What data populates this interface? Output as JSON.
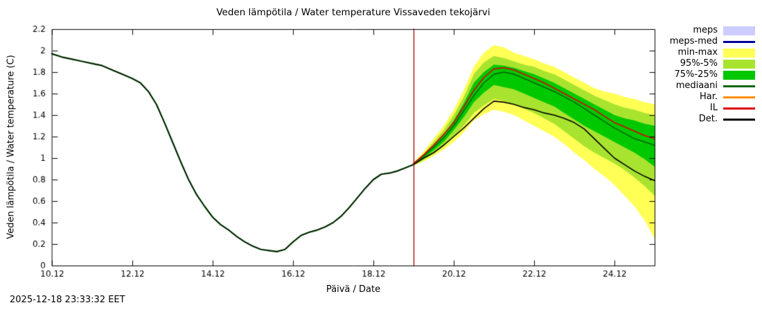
{
  "header": {
    "title": "Veden lämpötila / Water temperature Vissaveden tekojärvi"
  },
  "footer": {
    "timestamp": "2025-12-18 23:33:32 EET"
  },
  "chart_data": {
    "type": "line",
    "title": "Veden lämpötila / Water temperature Vissaveden tekojärvi",
    "xlabel": "Päivä / Date",
    "ylabel": "Veden lämpötila / Water temperature (C)",
    "xlim": [
      10,
      25
    ],
    "ylim": [
      0,
      2.2
    ],
    "grid": false,
    "legend_position": "outside-right",
    "x_ticks": [
      {
        "v": 10,
        "label": "10.12"
      },
      {
        "v": 12,
        "label": "12.12"
      },
      {
        "v": 14,
        "label": "14.12"
      },
      {
        "v": 16,
        "label": "16.12"
      },
      {
        "v": 18,
        "label": "18.12"
      },
      {
        "v": 20,
        "label": "20.12"
      },
      {
        "v": 22,
        "label": "22.12"
      },
      {
        "v": 24,
        "label": "24.12"
      }
    ],
    "y_ticks": [
      {
        "v": 0,
        "label": "0"
      },
      {
        "v": 0.2,
        "label": "0.2"
      },
      {
        "v": 0.4,
        "label": "0.4"
      },
      {
        "v": 0.6,
        "label": "0.6"
      },
      {
        "v": 0.8,
        "label": "0.8"
      },
      {
        "v": 1,
        "label": "1"
      },
      {
        "v": 1.2,
        "label": "1.2"
      },
      {
        "v": 1.4,
        "label": "1.4"
      },
      {
        "v": 1.6,
        "label": "1.6"
      },
      {
        "v": 1.8,
        "label": "1.8"
      },
      {
        "v": 2,
        "label": "2"
      },
      {
        "v": 2.2,
        "label": "2.2"
      }
    ],
    "forecast_start": 19,
    "forecast_line_color": "#a00000",
    "history": {
      "x": [
        10.0,
        10.25,
        10.5,
        10.75,
        11.0,
        11.25,
        11.5,
        11.75,
        12.0,
        12.2,
        12.4,
        12.6,
        12.8,
        13.0,
        13.2,
        13.4,
        13.6,
        13.8,
        14.0,
        14.2,
        14.4,
        14.6,
        14.8,
        15.0,
        15.2,
        15.4,
        15.6,
        15.8,
        16.0,
        16.2,
        16.4,
        16.6,
        16.8,
        17.0,
        17.2,
        17.4,
        17.6,
        17.8,
        18.0,
        18.2,
        18.4,
        18.6,
        18.8,
        19.0
      ],
      "y": [
        1.97,
        1.94,
        1.92,
        1.9,
        1.88,
        1.86,
        1.82,
        1.78,
        1.74,
        1.7,
        1.62,
        1.5,
        1.33,
        1.15,
        0.97,
        0.8,
        0.66,
        0.55,
        0.45,
        0.38,
        0.33,
        0.27,
        0.22,
        0.18,
        0.15,
        0.14,
        0.13,
        0.15,
        0.22,
        0.28,
        0.31,
        0.33,
        0.36,
        0.4,
        0.46,
        0.54,
        0.63,
        0.72,
        0.8,
        0.85,
        0.86,
        0.88,
        0.91,
        0.94
      ],
      "colors": [
        "#006400",
        "#000000"
      ]
    },
    "forecast_x": [
      19.0,
      19.25,
      19.5,
      19.75,
      20.0,
      20.25,
      20.5,
      20.75,
      21.0,
      21.25,
      21.5,
      21.75,
      22.0,
      22.25,
      22.5,
      22.75,
      23.0,
      23.25,
      23.5,
      23.75,
      24.0,
      24.25,
      24.5,
      24.75,
      25.0
    ],
    "bands": [
      {
        "name": "min-max",
        "color": "#ffff55",
        "hi": [
          0.96,
          1.06,
          1.18,
          1.3,
          1.45,
          1.63,
          1.85,
          1.98,
          2.05,
          2.03,
          1.98,
          1.95,
          1.92,
          1.88,
          1.85,
          1.8,
          1.75,
          1.7,
          1.65,
          1.62,
          1.6,
          1.57,
          1.55,
          1.52,
          1.5
        ],
        "lo": [
          0.93,
          0.97,
          1.02,
          1.08,
          1.15,
          1.24,
          1.35,
          1.41,
          1.45,
          1.43,
          1.4,
          1.35,
          1.3,
          1.25,
          1.2,
          1.13,
          1.05,
          0.98,
          0.9,
          0.83,
          0.75,
          0.65,
          0.55,
          0.42,
          0.25
        ]
      },
      {
        "name": "95%-5%",
        "color": "#a8e42f",
        "hi": [
          0.95,
          1.04,
          1.15,
          1.26,
          1.4,
          1.57,
          1.78,
          1.89,
          1.95,
          1.93,
          1.9,
          1.87,
          1.85,
          1.81,
          1.78,
          1.73,
          1.68,
          1.63,
          1.58,
          1.54,
          1.5,
          1.47,
          1.45,
          1.42,
          1.4
        ],
        "lo": [
          0.93,
          0.98,
          1.04,
          1.11,
          1.2,
          1.3,
          1.42,
          1.49,
          1.55,
          1.53,
          1.5,
          1.46,
          1.42,
          1.37,
          1.32,
          1.25,
          1.18,
          1.11,
          1.05,
          1.0,
          0.95,
          0.89,
          0.82,
          0.74,
          0.65
        ]
      },
      {
        "name": "75%-25%",
        "color": "#00c800",
        "hi": [
          0.95,
          1.03,
          1.12,
          1.22,
          1.35,
          1.51,
          1.7,
          1.8,
          1.87,
          1.86,
          1.84,
          1.81,
          1.78,
          1.74,
          1.7,
          1.65,
          1.6,
          1.55,
          1.5,
          1.45,
          1.4,
          1.37,
          1.35,
          1.32,
          1.3
        ],
        "lo": [
          0.94,
          1.0,
          1.07,
          1.15,
          1.26,
          1.38,
          1.52,
          1.61,
          1.68,
          1.66,
          1.64,
          1.6,
          1.56,
          1.52,
          1.48,
          1.42,
          1.36,
          1.3,
          1.25,
          1.2,
          1.15,
          1.1,
          1.05,
          0.99,
          0.92
        ]
      }
    ],
    "lines": [
      {
        "name": "mediaani",
        "color": "#006400",
        "width": 1.6,
        "y": [
          0.95,
          1.02,
          1.1,
          1.19,
          1.3,
          1.44,
          1.58,
          1.7,
          1.78,
          1.8,
          1.78,
          1.74,
          1.7,
          1.66,
          1.62,
          1.57,
          1.52,
          1.46,
          1.4,
          1.34,
          1.28,
          1.23,
          1.18,
          1.15,
          1.12
        ]
      },
      {
        "name": "IL",
        "color": "#dd0000",
        "width": 1.6,
        "y": [
          0.95,
          1.03,
          1.12,
          1.22,
          1.33,
          1.48,
          1.63,
          1.75,
          1.83,
          1.84,
          1.82,
          1.78,
          1.74,
          1.7,
          1.65,
          1.6,
          1.55,
          1.5,
          1.45,
          1.39,
          1.33,
          1.29,
          1.25,
          1.21,
          1.18
        ]
      },
      {
        "name": "Det.",
        "color": "#000000",
        "width": 1.6,
        "y": [
          0.94,
          1.0,
          1.05,
          1.12,
          1.2,
          1.28,
          1.37,
          1.46,
          1.53,
          1.52,
          1.5,
          1.47,
          1.45,
          1.42,
          1.4,
          1.37,
          1.33,
          1.27,
          1.18,
          1.09,
          1.0,
          0.94,
          0.88,
          0.83,
          0.79
        ]
      }
    ],
    "legend": [
      {
        "label": "meps",
        "type": "band",
        "color": "#ccccff"
      },
      {
        "label": "meps-med",
        "type": "line",
        "color": "#000099"
      },
      {
        "label": "min-max",
        "type": "band",
        "color": "#ffff55"
      },
      {
        "label": "95%-5%",
        "type": "band",
        "color": "#a8e42f"
      },
      {
        "label": "75%-25%",
        "type": "band",
        "color": "#00c800"
      },
      {
        "label": "mediaani",
        "type": "line",
        "color": "#006400"
      },
      {
        "label": "Har.",
        "type": "line",
        "color": "#ff8c00"
      },
      {
        "label": "IL",
        "type": "line",
        "color": "#dd0000"
      },
      {
        "label": "Det.",
        "type": "line",
        "color": "#000000"
      }
    ]
  }
}
